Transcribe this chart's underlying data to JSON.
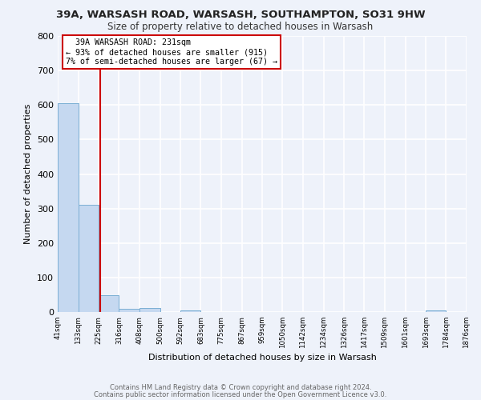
{
  "title": "39A, WARSASH ROAD, WARSASH, SOUTHAMPTON, SO31 9HW",
  "subtitle": "Size of property relative to detached houses in Warsash",
  "xlabel": "Distribution of detached houses by size in Warsash",
  "ylabel": "Number of detached properties",
  "bar_edges": [
    41,
    133,
    225,
    316,
    408,
    500,
    592,
    683,
    775,
    867,
    959,
    1050,
    1142,
    1234,
    1326,
    1417,
    1509,
    1601,
    1693,
    1784,
    1876
  ],
  "bar_heights": [
    606,
    310,
    48,
    10,
    12,
    0,
    4,
    0,
    0,
    0,
    0,
    0,
    0,
    0,
    0,
    0,
    0,
    0,
    4,
    0
  ],
  "bar_color": "#c5d8f0",
  "bar_edge_color": "#7bafd4",
  "property_size": 231,
  "red_line_color": "#cc0000",
  "annotation_line1": "39A WARSASH ROAD: 231sqm",
  "annotation_line2": "← 93% of detached houses are smaller (915)",
  "annotation_line3": "7% of semi-detached houses are larger (67) →",
  "annotation_box_color": "#ffffff",
  "annotation_box_edge_color": "#cc0000",
  "ylim": [
    0,
    800
  ],
  "yticks": [
    0,
    100,
    200,
    300,
    400,
    500,
    600,
    700,
    800
  ],
  "tick_labels": [
    "41sqm",
    "133sqm",
    "225sqm",
    "316sqm",
    "408sqm",
    "500sqm",
    "592sqm",
    "683sqm",
    "775sqm",
    "867sqm",
    "959sqm",
    "1050sqm",
    "1142sqm",
    "1234sqm",
    "1326sqm",
    "1417sqm",
    "1509sqm",
    "1601sqm",
    "1693sqm",
    "1784sqm",
    "1876sqm"
  ],
  "footer_line1": "Contains HM Land Registry data © Crown copyright and database right 2024.",
  "footer_line2": "Contains public sector information licensed under the Open Government Licence v3.0.",
  "background_color": "#eef2fa",
  "grid_color": "#ffffff"
}
